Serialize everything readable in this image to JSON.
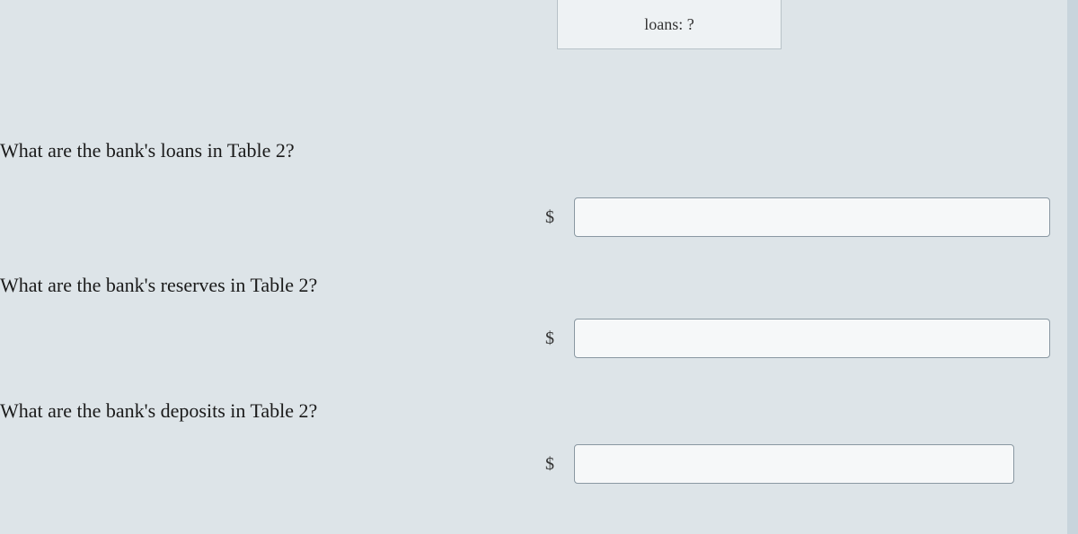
{
  "colors": {
    "page_bg": "#dde4e8",
    "cell_bg": "#eef2f4",
    "cell_border": "#b8c2c8",
    "input_bg": "#f6f8f9",
    "input_border": "#8a98a2",
    "text": "#1a1a1a",
    "right_edge": "#c8d4dc"
  },
  "top_cell": {
    "label": "loans: ?"
  },
  "currency_symbol": "$",
  "questions": [
    {
      "text": "What are the bank's loans in Table 2?",
      "value": ""
    },
    {
      "text": "What are the bank's reserves in Table 2?",
      "value": ""
    },
    {
      "text": "What are the bank's deposits in Table 2?",
      "value": ""
    }
  ]
}
